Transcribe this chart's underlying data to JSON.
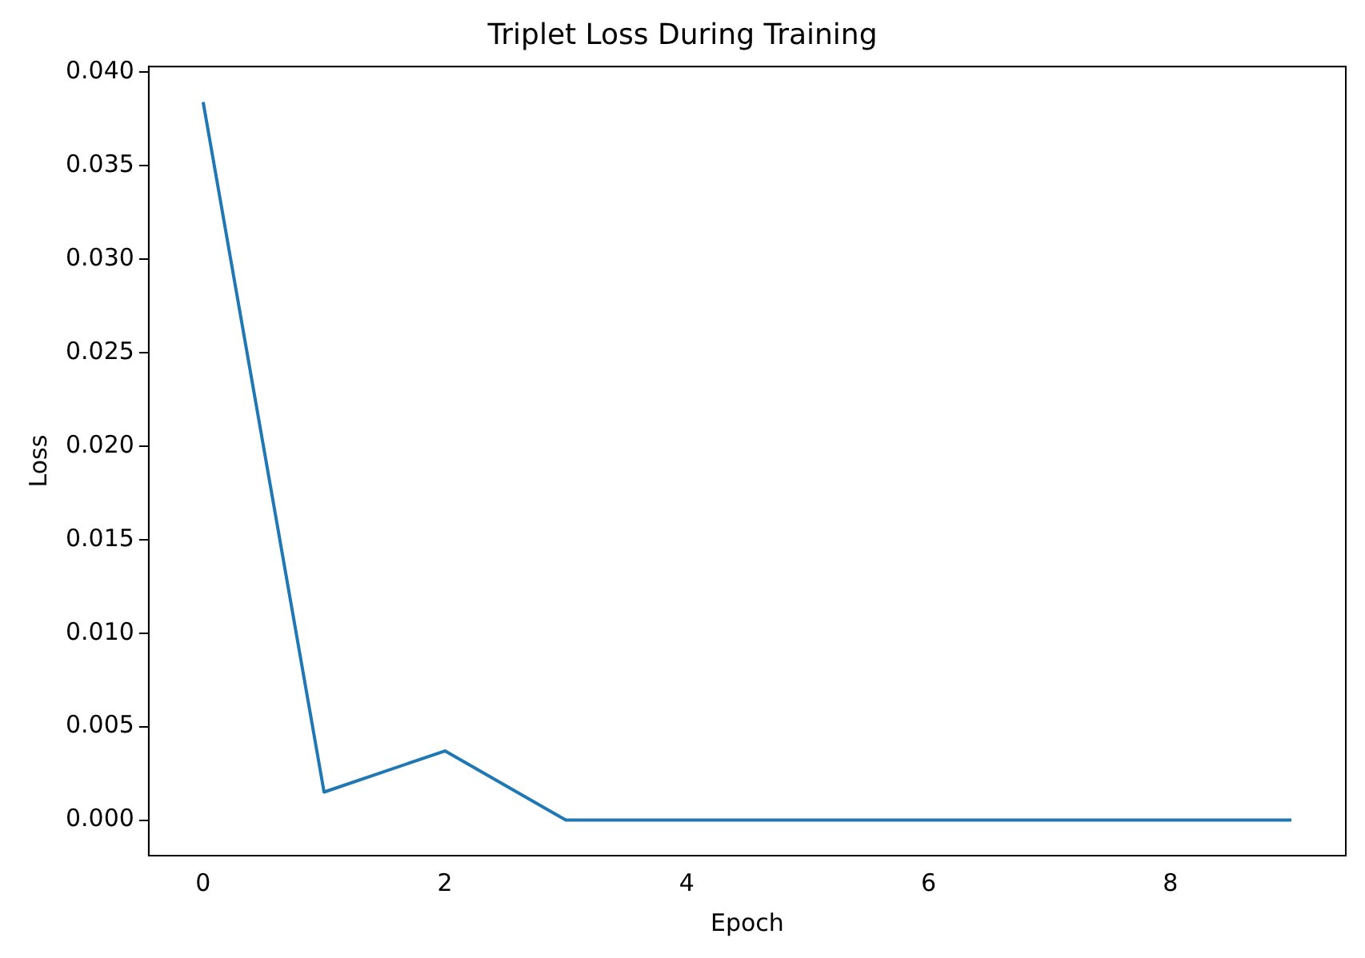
{
  "chart_data": {
    "type": "line",
    "title": "Triplet Loss During Training",
    "xlabel": "Epoch",
    "ylabel": "Loss",
    "x": [
      0,
      1,
      2,
      3,
      4,
      5,
      6,
      7,
      8,
      9
    ],
    "series": [
      {
        "color": "#1f77b4",
        "values": [
          0.0384,
          0.0015,
          0.0037,
          0,
          0,
          0,
          0,
          0,
          0,
          0
        ]
      }
    ],
    "xlim": [
      -0.45,
      9.45
    ],
    "xticks": [
      0,
      2,
      4,
      6,
      8
    ],
    "ylim": [
      -0.0019,
      0.0403
    ],
    "yticks": [
      {
        "value": 0,
        "label": "0.000"
      },
      {
        "value": 0.005,
        "label": "0.005"
      },
      {
        "value": 0.01,
        "label": "0.010"
      },
      {
        "value": 0.015,
        "label": "0.015"
      },
      {
        "value": 0.02,
        "label": "0.020"
      },
      {
        "value": 0.025,
        "label": "0.025"
      },
      {
        "value": 0.03,
        "label": "0.030"
      },
      {
        "value": 0.035,
        "label": "0.035"
      },
      {
        "value": 0.04,
        "label": "0.040"
      }
    ],
    "grid": false,
    "legend": false,
    "marker": "none",
    "line_style": "solid"
  }
}
